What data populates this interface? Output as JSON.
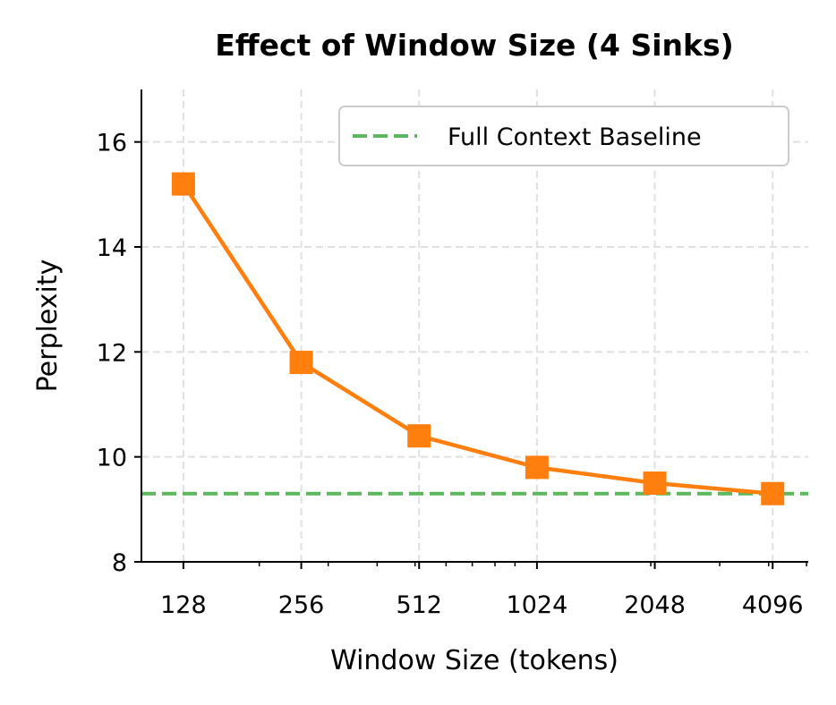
{
  "chart_data": {
    "type": "line",
    "title": "Effect of Window Size (4 Sinks)",
    "xlabel": "Window Size (tokens)",
    "ylabel": "Perplexity",
    "x_scale": "log2",
    "x": [
      128,
      256,
      512,
      1024,
      2048,
      4096
    ],
    "x_tick_labels": [
      "128",
      "256",
      "512",
      "1024",
      "2048",
      "4096"
    ],
    "xlim": [
      100,
      5050
    ],
    "ylim": [
      8,
      17
    ],
    "y_ticks": [
      8,
      10,
      12,
      14,
      16
    ],
    "y_tick_labels": [
      "8",
      "10",
      "12",
      "14",
      "16"
    ],
    "grid": true,
    "series": [
      {
        "values": [
          15.2,
          11.8,
          10.4,
          9.8,
          9.5,
          9.3
        ],
        "color": "#ff7f0e",
        "marker": "square"
      }
    ],
    "reference_lines": [
      {
        "name": "Full Context Baseline",
        "y": 9.3,
        "color": "#5cb85c",
        "style": "dashed"
      }
    ],
    "legend": {
      "placement": "top-right",
      "entries": [
        "Full Context Baseline"
      ]
    }
  }
}
